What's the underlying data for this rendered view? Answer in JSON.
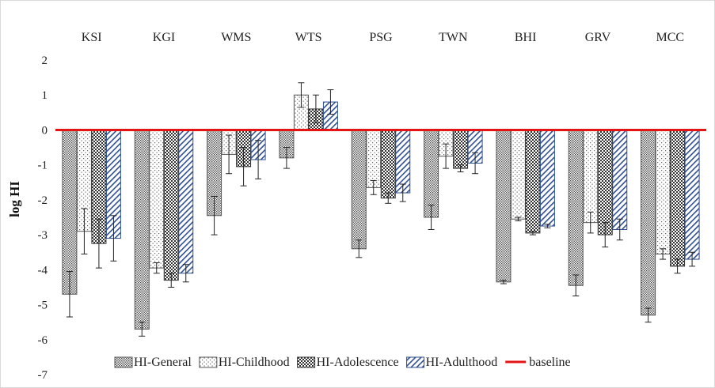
{
  "chart_data": {
    "type": "bar",
    "title": "",
    "xlabel": "",
    "ylabel": "log HI",
    "ylim": [
      -7,
      2
    ],
    "yticks": [
      2,
      1,
      0,
      -1,
      -2,
      -3,
      -4,
      -5,
      -6,
      -7
    ],
    "categories": [
      "KSI",
      "KGI",
      "WMS",
      "WTS",
      "PSG",
      "TWN",
      "BHI",
      "GRV",
      "MCC"
    ],
    "category_label_position": "top",
    "legend_position": "bottom",
    "series": [
      {
        "name": "HI-General",
        "pattern": "dots-dense",
        "color": "#555555",
        "values": [
          -4.7,
          -5.7,
          -2.45,
          -0.8,
          -3.4,
          -2.5,
          -4.35,
          -4.45,
          -5.3
        ],
        "errors": [
          0.65,
          0.2,
          0.55,
          0.3,
          0.25,
          0.35,
          0.05,
          0.3,
          0.2
        ]
      },
      {
        "name": "HI-Childhood",
        "pattern": "dots-sparse",
        "color": "#555555",
        "values": [
          -2.9,
          -3.95,
          -0.7,
          1.0,
          -1.65,
          -0.75,
          -2.55,
          -2.65,
          -3.55
        ],
        "errors": [
          0.65,
          0.15,
          0.55,
          0.35,
          0.2,
          0.35,
          0.05,
          0.3,
          0.15
        ]
      },
      {
        "name": "HI-Adolescence",
        "pattern": "checker",
        "color": "#333333",
        "values": [
          -3.25,
          -4.3,
          -1.05,
          0.6,
          -1.95,
          -1.1,
          -2.95,
          -3.0,
          -3.9
        ],
        "errors": [
          0.7,
          0.2,
          0.55,
          0.4,
          0.15,
          0.1,
          0.05,
          0.35,
          0.2
        ]
      },
      {
        "name": "HI-Adulthood",
        "pattern": "diagonal",
        "color": "#2f4f8f",
        "values": [
          -3.1,
          -4.1,
          -0.85,
          0.8,
          -1.8,
          -0.95,
          -2.75,
          -2.85,
          -3.7
        ],
        "errors": [
          0.65,
          0.25,
          0.55,
          0.35,
          0.25,
          0.3,
          0.05,
          0.3,
          0.2
        ]
      }
    ],
    "baseline": {
      "name": "baseline",
      "value": 0,
      "color": "#e41414"
    }
  }
}
